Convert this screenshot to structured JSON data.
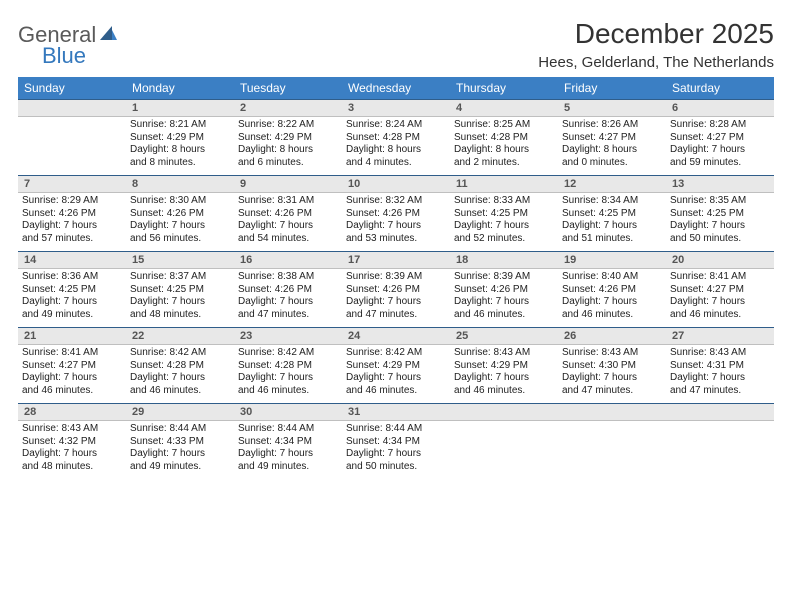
{
  "brand": {
    "general": "General",
    "blue": "Blue"
  },
  "title": "December 2025",
  "location": "Hees, Gelderland, The Netherlands",
  "colors": {
    "header_bg": "#3b7fc4",
    "header_fg": "#ffffff",
    "daynum_bg": "#e8e8e8",
    "daynum_border_top": "#2f5d8a",
    "logo_blue": "#3478bd",
    "logo_gray": "#5a5a5a"
  },
  "dow": [
    "Sunday",
    "Monday",
    "Tuesday",
    "Wednesday",
    "Thursday",
    "Friday",
    "Saturday"
  ],
  "weeks": [
    {
      "nums": [
        "",
        "1",
        "2",
        "3",
        "4",
        "5",
        "6"
      ],
      "cells": [
        {},
        {
          "sunrise": "Sunrise: 8:21 AM",
          "sunset": "Sunset: 4:29 PM",
          "day1": "Daylight: 8 hours",
          "day2": "and 8 minutes."
        },
        {
          "sunrise": "Sunrise: 8:22 AM",
          "sunset": "Sunset: 4:29 PM",
          "day1": "Daylight: 8 hours",
          "day2": "and 6 minutes."
        },
        {
          "sunrise": "Sunrise: 8:24 AM",
          "sunset": "Sunset: 4:28 PM",
          "day1": "Daylight: 8 hours",
          "day2": "and 4 minutes."
        },
        {
          "sunrise": "Sunrise: 8:25 AM",
          "sunset": "Sunset: 4:28 PM",
          "day1": "Daylight: 8 hours",
          "day2": "and 2 minutes."
        },
        {
          "sunrise": "Sunrise: 8:26 AM",
          "sunset": "Sunset: 4:27 PM",
          "day1": "Daylight: 8 hours",
          "day2": "and 0 minutes."
        },
        {
          "sunrise": "Sunrise: 8:28 AM",
          "sunset": "Sunset: 4:27 PM",
          "day1": "Daylight: 7 hours",
          "day2": "and 59 minutes."
        }
      ]
    },
    {
      "nums": [
        "7",
        "8",
        "9",
        "10",
        "11",
        "12",
        "13"
      ],
      "cells": [
        {
          "sunrise": "Sunrise: 8:29 AM",
          "sunset": "Sunset: 4:26 PM",
          "day1": "Daylight: 7 hours",
          "day2": "and 57 minutes."
        },
        {
          "sunrise": "Sunrise: 8:30 AM",
          "sunset": "Sunset: 4:26 PM",
          "day1": "Daylight: 7 hours",
          "day2": "and 56 minutes."
        },
        {
          "sunrise": "Sunrise: 8:31 AM",
          "sunset": "Sunset: 4:26 PM",
          "day1": "Daylight: 7 hours",
          "day2": "and 54 minutes."
        },
        {
          "sunrise": "Sunrise: 8:32 AM",
          "sunset": "Sunset: 4:26 PM",
          "day1": "Daylight: 7 hours",
          "day2": "and 53 minutes."
        },
        {
          "sunrise": "Sunrise: 8:33 AM",
          "sunset": "Sunset: 4:25 PM",
          "day1": "Daylight: 7 hours",
          "day2": "and 52 minutes."
        },
        {
          "sunrise": "Sunrise: 8:34 AM",
          "sunset": "Sunset: 4:25 PM",
          "day1": "Daylight: 7 hours",
          "day2": "and 51 minutes."
        },
        {
          "sunrise": "Sunrise: 8:35 AM",
          "sunset": "Sunset: 4:25 PM",
          "day1": "Daylight: 7 hours",
          "day2": "and 50 minutes."
        }
      ]
    },
    {
      "nums": [
        "14",
        "15",
        "16",
        "17",
        "18",
        "19",
        "20"
      ],
      "cells": [
        {
          "sunrise": "Sunrise: 8:36 AM",
          "sunset": "Sunset: 4:25 PM",
          "day1": "Daylight: 7 hours",
          "day2": "and 49 minutes."
        },
        {
          "sunrise": "Sunrise: 8:37 AM",
          "sunset": "Sunset: 4:25 PM",
          "day1": "Daylight: 7 hours",
          "day2": "and 48 minutes."
        },
        {
          "sunrise": "Sunrise: 8:38 AM",
          "sunset": "Sunset: 4:26 PM",
          "day1": "Daylight: 7 hours",
          "day2": "and 47 minutes."
        },
        {
          "sunrise": "Sunrise: 8:39 AM",
          "sunset": "Sunset: 4:26 PM",
          "day1": "Daylight: 7 hours",
          "day2": "and 47 minutes."
        },
        {
          "sunrise": "Sunrise: 8:39 AM",
          "sunset": "Sunset: 4:26 PM",
          "day1": "Daylight: 7 hours",
          "day2": "and 46 minutes."
        },
        {
          "sunrise": "Sunrise: 8:40 AM",
          "sunset": "Sunset: 4:26 PM",
          "day1": "Daylight: 7 hours",
          "day2": "and 46 minutes."
        },
        {
          "sunrise": "Sunrise: 8:41 AM",
          "sunset": "Sunset: 4:27 PM",
          "day1": "Daylight: 7 hours",
          "day2": "and 46 minutes."
        }
      ]
    },
    {
      "nums": [
        "21",
        "22",
        "23",
        "24",
        "25",
        "26",
        "27"
      ],
      "cells": [
        {
          "sunrise": "Sunrise: 8:41 AM",
          "sunset": "Sunset: 4:27 PM",
          "day1": "Daylight: 7 hours",
          "day2": "and 46 minutes."
        },
        {
          "sunrise": "Sunrise: 8:42 AM",
          "sunset": "Sunset: 4:28 PM",
          "day1": "Daylight: 7 hours",
          "day2": "and 46 minutes."
        },
        {
          "sunrise": "Sunrise: 8:42 AM",
          "sunset": "Sunset: 4:28 PM",
          "day1": "Daylight: 7 hours",
          "day2": "and 46 minutes."
        },
        {
          "sunrise": "Sunrise: 8:42 AM",
          "sunset": "Sunset: 4:29 PM",
          "day1": "Daylight: 7 hours",
          "day2": "and 46 minutes."
        },
        {
          "sunrise": "Sunrise: 8:43 AM",
          "sunset": "Sunset: 4:29 PM",
          "day1": "Daylight: 7 hours",
          "day2": "and 46 minutes."
        },
        {
          "sunrise": "Sunrise: 8:43 AM",
          "sunset": "Sunset: 4:30 PM",
          "day1": "Daylight: 7 hours",
          "day2": "and 47 minutes."
        },
        {
          "sunrise": "Sunrise: 8:43 AM",
          "sunset": "Sunset: 4:31 PM",
          "day1": "Daylight: 7 hours",
          "day2": "and 47 minutes."
        }
      ]
    },
    {
      "nums": [
        "28",
        "29",
        "30",
        "31",
        "",
        "",
        ""
      ],
      "cells": [
        {
          "sunrise": "Sunrise: 8:43 AM",
          "sunset": "Sunset: 4:32 PM",
          "day1": "Daylight: 7 hours",
          "day2": "and 48 minutes."
        },
        {
          "sunrise": "Sunrise: 8:44 AM",
          "sunset": "Sunset: 4:33 PM",
          "day1": "Daylight: 7 hours",
          "day2": "and 49 minutes."
        },
        {
          "sunrise": "Sunrise: 8:44 AM",
          "sunset": "Sunset: 4:34 PM",
          "day1": "Daylight: 7 hours",
          "day2": "and 49 minutes."
        },
        {
          "sunrise": "Sunrise: 8:44 AM",
          "sunset": "Sunset: 4:34 PM",
          "day1": "Daylight: 7 hours",
          "day2": "and 50 minutes."
        },
        {},
        {},
        {}
      ]
    }
  ]
}
